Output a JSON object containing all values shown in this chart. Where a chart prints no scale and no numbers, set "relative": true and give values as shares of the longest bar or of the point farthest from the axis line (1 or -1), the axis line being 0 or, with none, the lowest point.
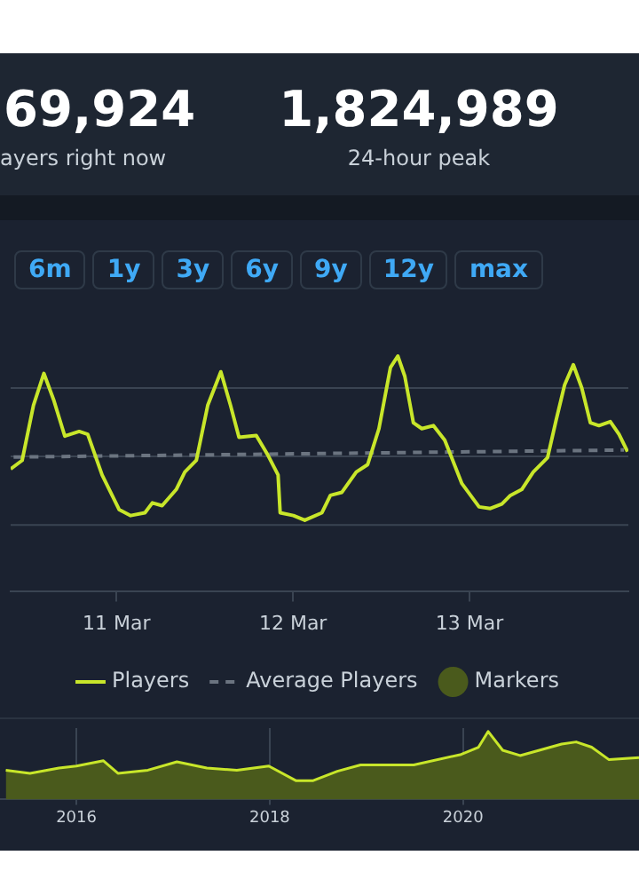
{
  "chart_data": [
    {
      "type": "other",
      "annotations": [
        "69,924",
        "ayers right now",
        "1,824,989",
        "24-hour peak",
        "6m",
        "1y",
        "3y",
        "6y",
        "9y",
        "12y",
        "max"
      ]
    },
    {
      "type": "line",
      "relative": true,
      "x": [
        "--03-10T09:36",
        "--03-10T11:10",
        "--03-10T12:42",
        "--03-10T14:07",
        "--03-10T15:26",
        "--03-10T16:58",
        "--03-10T18:55",
        "--03-10T20:05",
        "--03-10T22:02",
        "--03-11T00:22",
        "--03-11T01:55",
        "--03-11T03:52",
        "--03-11T04:52",
        "--03-11T06:12",
        "--03-11T08:07",
        "--03-11T09:17",
        "--03-11T10:51",
        "--03-11T12:24",
        "--03-11T14:11",
        "--03-11T15:30",
        "--03-11T16:39",
        "--03-11T19:00",
        "--03-11T20:33",
        "--03-11T21:58",
        "--03-11T22:15",
        "--03-12T00:03",
        "--03-12T01:36",
        "--03-12T03:56",
        "--03-12T05:05",
        "--03-12T06:39",
        "--03-12T08:36",
        "--03-12T10:09",
        "--03-12T11:41",
        "--03-12T13:15",
        "--03-12T14:15",
        "--03-12T15:12",
        "--03-12T16:22",
        "--03-12T17:31",
        "--03-12T19:05",
        "--03-12T20:38",
        "--03-12T22:58",
        "--03-13T01:18",
        "--03-13T02:50",
        "--03-13T04:24",
        "--03-13T05:34",
        "--03-13T07:06",
        "--03-13T08:40",
        "--03-13T10:37",
        "--03-13T11:47",
        "--03-13T12:56",
        "--03-13T14:07",
        "--03-13T15:16",
        "--03-13T16:26",
        "--03-13T17:36",
        "--03-13T19:09",
        "--03-13T20:20",
        "--03-13T21:29"
      ],
      "xlim": [
        "--03-10T09:36",
        "--03-13T21:36"
      ],
      "xticks": [
        {
          "value": "--03-11",
          "label": "11 Mar"
        },
        {
          "value": "--03-12",
          "label": "12 Mar"
        },
        {
          "value": "--03-13",
          "label": "13 Mar"
        }
      ],
      "ref_lines": [
        {
          "axis": "y",
          "value": 0.864,
          "color": "#3a4452"
        },
        {
          "axis": "y",
          "value": 0.573,
          "color": "#3a4452"
        },
        {
          "axis": "y",
          "value": 0.281,
          "color": "#3a4452"
        }
      ],
      "legend": "bottom",
      "marker": "none",
      "series": [
        {
          "name": "Players",
          "type": "line",
          "color": "#c8e62a",
          "values": [
            0.519,
            0.556,
            0.79,
            0.926,
            0.815,
            0.659,
            0.679,
            0.667,
            0.494,
            0.346,
            0.321,
            0.333,
            0.375,
            0.363,
            0.432,
            0.506,
            0.556,
            0.79,
            0.933,
            0.79,
            0.654,
            0.662,
            0.58,
            0.494,
            0.333,
            0.321,
            0.301,
            0.333,
            0.407,
            0.42,
            0.506,
            0.538,
            0.691,
            0.951,
            1.0,
            0.914,
            0.716,
            0.691,
            0.704,
            0.642,
            0.457,
            0.358,
            0.351,
            0.37,
            0.407,
            0.432,
            0.506,
            0.568,
            0.728,
            0.877,
            0.963,
            0.864,
            0.716,
            0.704,
            0.721,
            0.667,
            0.593
          ]
        },
        {
          "name": "Average Players",
          "type": "line",
          "line_style": "dashed",
          "color": "#6b7480",
          "x": [
            "--03-10T10:00",
            "--03-13T21:00"
          ],
          "values": [
            0.57,
            0.6
          ]
        },
        {
          "name": "Markers",
          "type": "scatter",
          "color": "#4a5a1c",
          "values": [
            null,
            null,
            null,
            null,
            null,
            null,
            null,
            null,
            null,
            null,
            null,
            null,
            null,
            null,
            null,
            null,
            null,
            null,
            null,
            null,
            null,
            null,
            null,
            null,
            null,
            null,
            null,
            null,
            null,
            null,
            null,
            null,
            null,
            null,
            null,
            null,
            null,
            null,
            null,
            null,
            null,
            null,
            null,
            null,
            null,
            null,
            null,
            null,
            null,
            null,
            null,
            null,
            null,
            null,
            null,
            null,
            null
          ]
        }
      ]
    },
    {
      "type": "area",
      "relative": true,
      "color": "#c8e62a",
      "grid": "x",
      "x": [
        2015.27,
        2015.52,
        2015.82,
        2016.0,
        2016.28,
        2016.43,
        2016.74,
        2017.04,
        2017.35,
        2017.66,
        2017.99,
        2018.27,
        2018.45,
        2018.7,
        2018.94,
        2019.49,
        2019.98,
        2020.16,
        2020.26,
        2020.41,
        2020.59,
        2021.02,
        2021.17,
        2021.33,
        2021.51,
        2021.82
      ],
      "values": [
        0.431,
        0.385,
        0.462,
        0.492,
        0.569,
        0.385,
        0.431,
        0.554,
        0.462,
        0.431,
        0.492,
        0.277,
        0.277,
        0.415,
        0.508,
        0.508,
        0.662,
        0.769,
        1.0,
        0.723,
        0.646,
        0.815,
        0.846,
        0.769,
        0.585,
        0.615
      ],
      "xlim": [
        2015.21,
        2021.82
      ],
      "xticks": [
        2016,
        2018,
        2020
      ]
    }
  ]
}
